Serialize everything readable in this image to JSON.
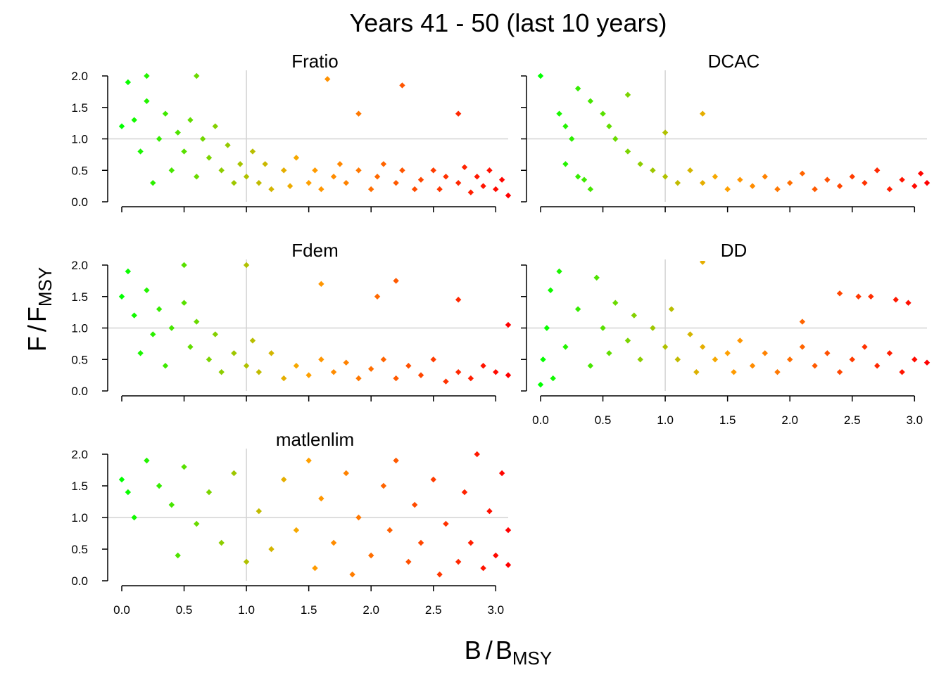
{
  "chart_data": {
    "type": "scatter",
    "title": "Years 41 - 50 (last 10 years)",
    "xlabel": {
      "main": "B",
      "sub": "MSY",
      "separator": "/"
    },
    "ylabel": {
      "main": "F",
      "sub": "MSY",
      "separator": "/"
    },
    "xlim": [
      0,
      3.1
    ],
    "ylim": [
      0,
      2.0
    ],
    "x_ticks": [
      "0.0",
      "0.5",
      "1.0",
      "1.5",
      "2.0",
      "2.5",
      "3.0"
    ],
    "y_ticks": [
      "0.0",
      "0.5",
      "1.0",
      "1.5",
      "2.0"
    ],
    "reference_lines": {
      "x": 1.0,
      "y": 1.0,
      "color": "#d3d3d3"
    },
    "grid": false,
    "color_scale": {
      "variable": "x",
      "stops": [
        {
          "x": 0.0,
          "color": "#00ff00"
        },
        {
          "x": 1.45,
          "color": "#ffa500"
        },
        {
          "x": 3.1,
          "color": "#ff0000"
        }
      ]
    },
    "marker": "diamond",
    "panels": [
      {
        "title": "Fratio",
        "points": [
          [
            0.0,
            1.2
          ],
          [
            0.05,
            1.9
          ],
          [
            0.1,
            1.3
          ],
          [
            0.15,
            0.8
          ],
          [
            0.2,
            1.6
          ],
          [
            0.25,
            0.3
          ],
          [
            0.3,
            1.0
          ],
          [
            0.35,
            1.4
          ],
          [
            0.4,
            0.5
          ],
          [
            0.45,
            1.1
          ],
          [
            0.5,
            0.8
          ],
          [
            0.55,
            1.3
          ],
          [
            0.6,
            0.4
          ],
          [
            0.65,
            1.0
          ],
          [
            0.7,
            0.7
          ],
          [
            0.75,
            1.2
          ],
          [
            0.8,
            0.5
          ],
          [
            0.85,
            0.9
          ],
          [
            0.9,
            0.3
          ],
          [
            0.95,
            0.6
          ],
          [
            1.0,
            0.4
          ],
          [
            1.05,
            0.8
          ],
          [
            1.1,
            0.3
          ],
          [
            1.15,
            0.6
          ],
          [
            1.2,
            0.2
          ],
          [
            1.3,
            0.5
          ],
          [
            1.35,
            0.25
          ],
          [
            1.4,
            0.7
          ],
          [
            1.5,
            0.3
          ],
          [
            1.55,
            0.5
          ],
          [
            1.6,
            0.2
          ],
          [
            1.7,
            0.4
          ],
          [
            1.75,
            0.6
          ],
          [
            1.8,
            0.3
          ],
          [
            1.9,
            0.5
          ],
          [
            2.0,
            0.2
          ],
          [
            2.05,
            0.4
          ],
          [
            2.1,
            0.6
          ],
          [
            2.2,
            0.3
          ],
          [
            2.25,
            0.5
          ],
          [
            2.35,
            0.2
          ],
          [
            2.4,
            0.35
          ],
          [
            2.5,
            0.5
          ],
          [
            2.55,
            0.2
          ],
          [
            2.6,
            0.4
          ],
          [
            2.7,
            0.3
          ],
          [
            2.75,
            0.55
          ],
          [
            2.8,
            0.15
          ],
          [
            2.85,
            0.4
          ],
          [
            2.9,
            0.25
          ],
          [
            2.95,
            0.5
          ],
          [
            3.0,
            0.2
          ],
          [
            3.05,
            0.35
          ],
          [
            3.1,
            0.1
          ],
          [
            2.7,
            1.4
          ],
          [
            2.25,
            1.85
          ],
          [
            1.65,
            1.95
          ],
          [
            1.9,
            1.4
          ],
          [
            0.6,
            2.0
          ],
          [
            0.2,
            2.0
          ]
        ]
      },
      {
        "title": "DCAC",
        "points": [
          [
            0.0,
            2.0
          ],
          [
            0.15,
            1.4
          ],
          [
            0.2,
            1.2
          ],
          [
            0.25,
            1.0
          ],
          [
            0.2,
            0.6
          ],
          [
            0.3,
            0.4
          ],
          [
            0.35,
            0.35
          ],
          [
            0.4,
            0.2
          ],
          [
            0.3,
            1.8
          ],
          [
            0.4,
            1.6
          ],
          [
            0.5,
            1.4
          ],
          [
            0.55,
            1.2
          ],
          [
            0.6,
            1.0
          ],
          [
            0.7,
            0.8
          ],
          [
            0.8,
            0.6
          ],
          [
            0.9,
            0.5
          ],
          [
            1.0,
            0.4
          ],
          [
            1.1,
            0.3
          ],
          [
            1.2,
            0.5
          ],
          [
            1.3,
            0.3
          ],
          [
            1.4,
            0.4
          ],
          [
            1.5,
            0.2
          ],
          [
            1.6,
            0.35
          ],
          [
            1.7,
            0.25
          ],
          [
            1.8,
            0.4
          ],
          [
            1.9,
            0.2
          ],
          [
            2.0,
            0.3
          ],
          [
            2.1,
            0.45
          ],
          [
            2.2,
            0.2
          ],
          [
            2.3,
            0.35
          ],
          [
            2.4,
            0.25
          ],
          [
            2.5,
            0.4
          ],
          [
            2.6,
            0.3
          ],
          [
            2.7,
            0.5
          ],
          [
            2.8,
            0.2
          ],
          [
            2.9,
            0.35
          ],
          [
            3.0,
            0.25
          ],
          [
            3.05,
            0.45
          ],
          [
            3.1,
            0.3
          ],
          [
            1.3,
            1.4
          ],
          [
            0.7,
            1.7
          ],
          [
            1.0,
            1.1
          ]
        ]
      },
      {
        "title": "Fdem",
        "points": [
          [
            0.0,
            1.5
          ],
          [
            0.05,
            1.9
          ],
          [
            0.1,
            1.2
          ],
          [
            0.15,
            0.6
          ],
          [
            0.2,
            1.6
          ],
          [
            0.25,
            0.9
          ],
          [
            0.3,
            1.3
          ],
          [
            0.35,
            0.4
          ],
          [
            0.4,
            1.0
          ],
          [
            0.5,
            1.4
          ],
          [
            0.55,
            0.7
          ],
          [
            0.6,
            1.1
          ],
          [
            0.7,
            0.5
          ],
          [
            0.75,
            0.9
          ],
          [
            0.8,
            0.3
          ],
          [
            0.9,
            0.6
          ],
          [
            1.0,
            0.4
          ],
          [
            1.05,
            0.8
          ],
          [
            1.1,
            0.3
          ],
          [
            1.2,
            0.6
          ],
          [
            1.3,
            0.2
          ],
          [
            1.4,
            0.4
          ],
          [
            1.5,
            0.25
          ],
          [
            1.6,
            0.5
          ],
          [
            1.7,
            0.3
          ],
          [
            1.8,
            0.45
          ],
          [
            1.9,
            0.2
          ],
          [
            2.0,
            0.35
          ],
          [
            2.1,
            0.5
          ],
          [
            2.2,
            0.2
          ],
          [
            2.3,
            0.4
          ],
          [
            2.4,
            0.25
          ],
          [
            2.5,
            0.5
          ],
          [
            2.6,
            0.15
          ],
          [
            2.7,
            0.3
          ],
          [
            2.8,
            0.2
          ],
          [
            2.9,
            0.4
          ],
          [
            3.0,
            0.3
          ],
          [
            3.1,
            0.25
          ],
          [
            3.1,
            1.05
          ],
          [
            2.2,
            1.75
          ],
          [
            2.05,
            1.5
          ],
          [
            2.7,
            1.45
          ],
          [
            1.6,
            1.7
          ],
          [
            1.0,
            2.0
          ],
          [
            0.5,
            2.0
          ]
        ]
      },
      {
        "title": "DD",
        "points": [
          [
            0.0,
            0.1
          ],
          [
            0.02,
            0.5
          ],
          [
            0.05,
            1.0
          ],
          [
            0.08,
            1.6
          ],
          [
            0.1,
            0.2
          ],
          [
            0.15,
            1.9
          ],
          [
            0.2,
            0.7
          ],
          [
            0.3,
            1.3
          ],
          [
            0.4,
            0.4
          ],
          [
            0.45,
            1.8
          ],
          [
            0.5,
            1.0
          ],
          [
            0.55,
            0.6
          ],
          [
            0.6,
            1.4
          ],
          [
            0.7,
            0.8
          ],
          [
            0.75,
            1.2
          ],
          [
            0.8,
            0.5
          ],
          [
            0.9,
            1.0
          ],
          [
            1.0,
            0.7
          ],
          [
            1.05,
            1.3
          ],
          [
            1.1,
            0.5
          ],
          [
            1.2,
            0.9
          ],
          [
            1.25,
            0.3
          ],
          [
            1.3,
            0.7
          ],
          [
            1.4,
            0.5
          ],
          [
            1.5,
            0.6
          ],
          [
            1.55,
            0.3
          ],
          [
            1.6,
            0.8
          ],
          [
            1.7,
            0.4
          ],
          [
            1.8,
            0.6
          ],
          [
            1.9,
            0.3
          ],
          [
            2.0,
            0.5
          ],
          [
            2.1,
            0.7
          ],
          [
            2.2,
            0.4
          ],
          [
            2.3,
            0.6
          ],
          [
            2.4,
            0.3
          ],
          [
            2.5,
            0.5
          ],
          [
            2.6,
            0.7
          ],
          [
            2.7,
            0.4
          ],
          [
            2.8,
            0.6
          ],
          [
            2.9,
            0.3
          ],
          [
            3.0,
            0.5
          ],
          [
            3.1,
            0.45
          ],
          [
            2.4,
            1.55
          ],
          [
            2.55,
            1.5
          ],
          [
            2.65,
            1.5
          ],
          [
            2.85,
            1.45
          ],
          [
            2.95,
            1.4
          ],
          [
            2.1,
            1.1
          ],
          [
            1.3,
            2.05
          ]
        ]
      },
      {
        "title": "matlenlim",
        "points": [
          [
            0.0,
            1.6
          ],
          [
            0.05,
            1.4
          ],
          [
            0.1,
            1.0
          ],
          [
            0.2,
            1.9
          ],
          [
            0.3,
            1.5
          ],
          [
            0.4,
            1.2
          ],
          [
            0.45,
            0.4
          ],
          [
            0.5,
            1.8
          ],
          [
            0.6,
            0.9
          ],
          [
            0.7,
            1.4
          ],
          [
            0.8,
            0.6
          ],
          [
            0.9,
            1.7
          ],
          [
            1.0,
            0.3
          ],
          [
            1.1,
            1.1
          ],
          [
            1.2,
            0.5
          ],
          [
            1.3,
            1.6
          ],
          [
            1.4,
            0.8
          ],
          [
            1.5,
            1.9
          ],
          [
            1.55,
            0.2
          ],
          [
            1.6,
            1.3
          ],
          [
            1.7,
            0.6
          ],
          [
            1.8,
            1.7
          ],
          [
            1.85,
            0.1
          ],
          [
            1.9,
            1.0
          ],
          [
            2.0,
            0.4
          ],
          [
            2.1,
            1.5
          ],
          [
            2.15,
            0.8
          ],
          [
            2.2,
            1.9
          ],
          [
            2.3,
            0.3
          ],
          [
            2.35,
            1.2
          ],
          [
            2.4,
            0.6
          ],
          [
            2.5,
            1.6
          ],
          [
            2.55,
            0.1
          ],
          [
            2.6,
            0.9
          ],
          [
            2.7,
            0.3
          ],
          [
            2.75,
            1.4
          ],
          [
            2.8,
            0.6
          ],
          [
            2.85,
            2.0
          ],
          [
            2.9,
            0.2
          ],
          [
            2.95,
            1.1
          ],
          [
            3.0,
            0.4
          ],
          [
            3.05,
            1.7
          ],
          [
            3.1,
            0.25
          ],
          [
            3.1,
            0.8
          ]
        ]
      }
    ]
  }
}
